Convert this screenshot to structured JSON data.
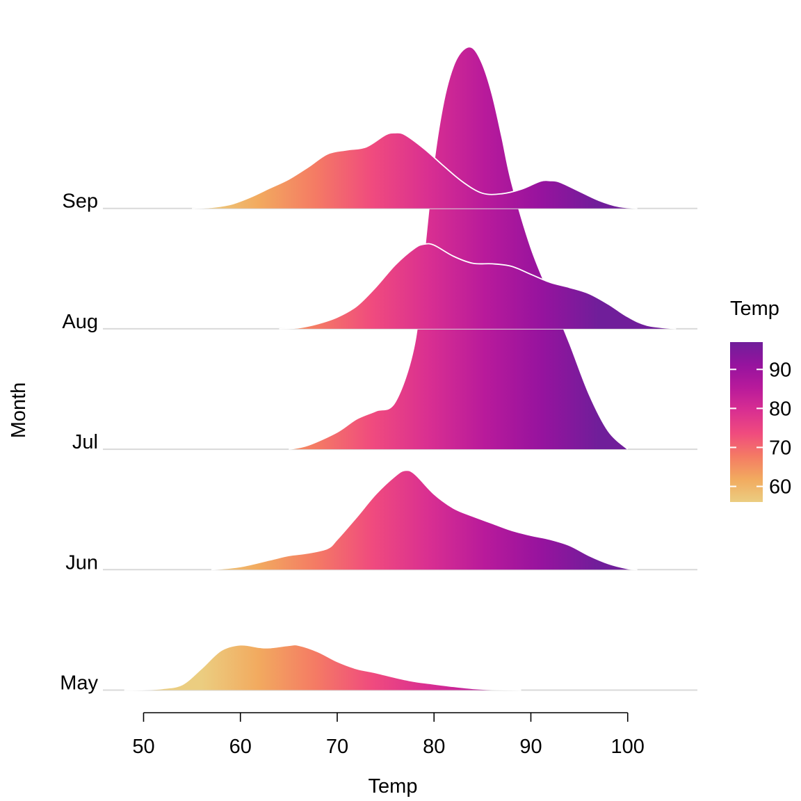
{
  "chart_data": {
    "type": "area",
    "subtype": "ridgeline",
    "xlabel": "Temp",
    "ylabel": "Month",
    "xlim": [
      45.8,
      107.2
    ],
    "x_ticks": [
      50,
      60,
      70,
      80,
      90,
      100
    ],
    "x_tick_labels": [
      "50",
      "60",
      "70",
      "80",
      "90",
      "100"
    ],
    "grid": "horizontal baselines only",
    "fill": "gradient by Temp (plasma-style)",
    "legend": {
      "title": "Temp",
      "placement": "right",
      "range": [
        56,
        97
      ],
      "ticks": [
        60,
        70,
        80,
        90
      ],
      "tick_labels": [
        "60",
        "70",
        "80",
        "90"
      ],
      "colors": [
        "#ebcd80",
        "#f2aa5f",
        "#f47b64",
        "#f04b7e",
        "#d92f91",
        "#b81a9b",
        "#96139e",
        "#701e9a"
      ]
    },
    "colors": {
      "baseline": "#d9d9d9",
      "ridge_outline": "#ffffff"
    },
    "series": [
      {
        "name": "May",
        "x": [
          48,
          50,
          52,
          54,
          56,
          58,
          60,
          62,
          63,
          65,
          66,
          68,
          70,
          72,
          74,
          76,
          78,
          80,
          82,
          84,
          86,
          88,
          89
        ],
        "density": [
          0.0,
          0.004,
          0.016,
          0.055,
          0.215,
          0.392,
          0.448,
          0.423,
          0.42,
          0.443,
          0.445,
          0.381,
          0.283,
          0.212,
          0.172,
          0.125,
          0.085,
          0.06,
          0.036,
          0.016,
          0.006,
          0.002,
          0.0
        ]
      },
      {
        "name": "Jun",
        "x": [
          57,
          60,
          63,
          65,
          67,
          69,
          70,
          72,
          74,
          76,
          77,
          78,
          80,
          82,
          84,
          86,
          88,
          90,
          92,
          94,
          96,
          98,
          100,
          101
        ],
        "density": [
          0.0,
          0.03,
          0.095,
          0.14,
          0.165,
          0.21,
          0.3,
          0.52,
          0.75,
          0.93,
          0.985,
          0.95,
          0.75,
          0.61,
          0.53,
          0.46,
          0.39,
          0.34,
          0.3,
          0.24,
          0.14,
          0.06,
          0.01,
          0.0
        ]
      },
      {
        "name": "Jul",
        "x": [
          65,
          67,
          70,
          72,
          74,
          76,
          78,
          79,
          80,
          81,
          82,
          83,
          84,
          85,
          86,
          87,
          88,
          90,
          92,
          94,
          96,
          98,
          100
        ],
        "density": [
          0.0,
          0.04,
          0.17,
          0.3,
          0.38,
          0.47,
          1.05,
          1.95,
          2.85,
          3.45,
          3.8,
          3.96,
          3.98,
          3.82,
          3.52,
          3.1,
          2.65,
          2.0,
          1.52,
          1.05,
          0.55,
          0.18,
          0.0
        ]
      },
      {
        "name": "Aug",
        "x": [
          64,
          66,
          68,
          70,
          72,
          74,
          76,
          78,
          79,
          80,
          82,
          84,
          86,
          88,
          90,
          92,
          94,
          96,
          98,
          100,
          102,
          105
        ],
        "density": [
          0.0,
          0.01,
          0.05,
          0.115,
          0.225,
          0.415,
          0.635,
          0.8,
          0.84,
          0.83,
          0.72,
          0.65,
          0.645,
          0.62,
          0.54,
          0.46,
          0.41,
          0.35,
          0.245,
          0.12,
          0.035,
          0.0
        ]
      },
      {
        "name": "Sep",
        "x": [
          55,
          57,
          59,
          61,
          63,
          65,
          67,
          69,
          71,
          73,
          75,
          76,
          77,
          79,
          81,
          83,
          85,
          87,
          89,
          91,
          92,
          93,
          95,
          97,
          99,
          101
        ],
        "density": [
          0.0,
          0.01,
          0.04,
          0.11,
          0.2,
          0.29,
          0.41,
          0.54,
          0.58,
          0.61,
          0.73,
          0.75,
          0.73,
          0.59,
          0.42,
          0.26,
          0.15,
          0.145,
          0.19,
          0.27,
          0.275,
          0.26,
          0.17,
          0.08,
          0.02,
          0.0
        ]
      }
    ]
  }
}
